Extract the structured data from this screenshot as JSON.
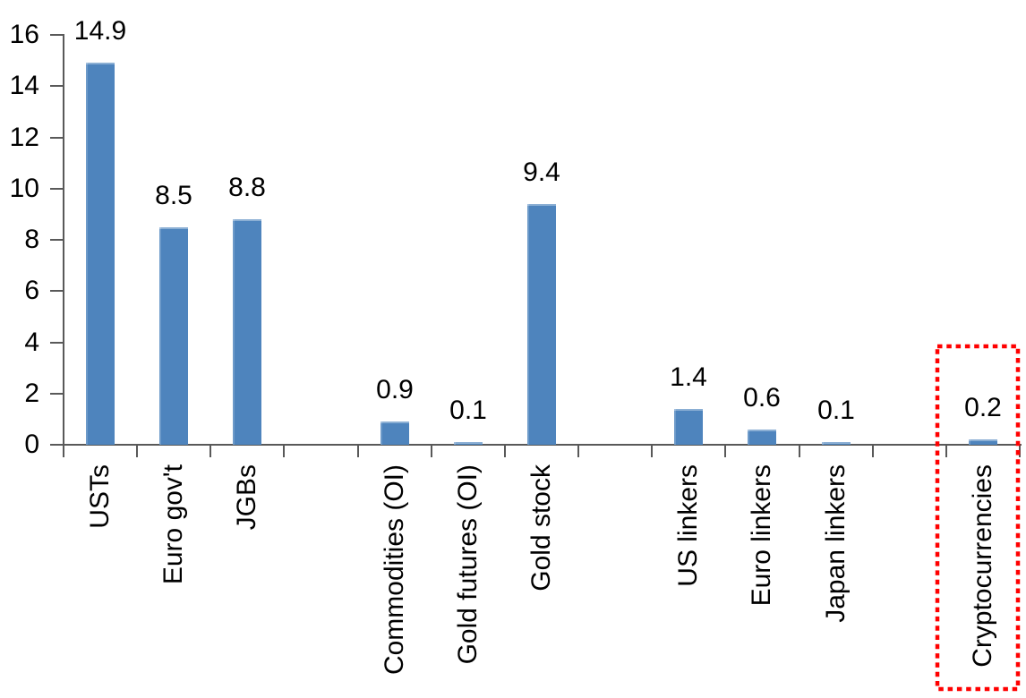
{
  "chart_data": {
    "type": "bar",
    "title": "",
    "xlabel": "",
    "ylabel": "",
    "categories": [
      "USTs",
      "Euro gov't",
      "JGBs",
      "Commodities (OI)",
      "Gold futures (OI)",
      "Gold stock",
      "US linkers",
      "Euro linkers",
      "Japan linkers",
      "Cryptocurrencies"
    ],
    "values": [
      14.9,
      8.5,
      8.8,
      0.9,
      0.1,
      9.4,
      1.4,
      0.6,
      0.1,
      0.2
    ],
    "data_labels": [
      "14.9",
      "8.5",
      "8.8",
      "0.9",
      "0.1",
      "9.4",
      "1.4",
      "0.6",
      "0.1",
      "0.2"
    ],
    "groups": [
      [
        "USTs",
        "Euro gov't",
        "JGBs"
      ],
      [
        "Commodities (OI)",
        "Gold futures (OI)",
        "Gold stock"
      ],
      [
        "US linkers",
        "Euro linkers",
        "Japan linkers"
      ],
      [
        "Cryptocurrencies"
      ]
    ],
    "yticks": [
      0,
      2,
      4,
      6,
      8,
      10,
      12,
      14,
      16
    ],
    "ylim": [
      0,
      16
    ],
    "grid": false,
    "legend": null,
    "bar_color": "#4E84BD",
    "axis_color": "#595959",
    "text_color": "#000000",
    "highlight": {
      "category": "Cryptocurrencies",
      "style": "dotted-box",
      "color": "#FF0000"
    }
  }
}
